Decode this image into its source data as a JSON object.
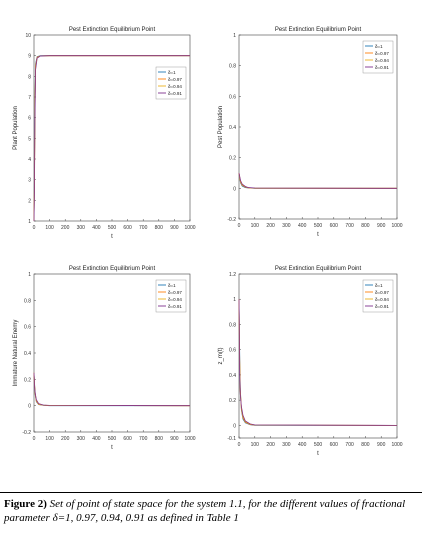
{
  "figure": {
    "caption_lead": "Figure 2)",
    "caption_text": " Set of point of state space for the system 1.1, for the different values of fractional parameter δ=1, 0.97, 0.94, 0.91 as defined in Table 1"
  },
  "colors": {
    "d1": "#1f77b4",
    "d097": "#ff7f0e",
    "d094": "#edb120",
    "d091": "#7e2f8e",
    "axis": "#444444"
  },
  "chart_data": [
    {
      "type": "line",
      "title": "Pest Extinction Equilibrium Point",
      "xlabel": "t",
      "ylabel": "Plant Population",
      "xlim": [
        0,
        1000
      ],
      "ylim": [
        1,
        10
      ],
      "xticks": [
        0,
        100,
        200,
        300,
        400,
        500,
        600,
        700,
        800,
        900,
        1000
      ],
      "yticks": [
        1,
        2,
        3,
        4,
        5,
        6,
        7,
        8,
        9,
        10
      ],
      "legend_position": "top-right",
      "series": [
        {
          "name": "δ=1",
          "color_key": "d1",
          "x": [
            0,
            3,
            6,
            10,
            20,
            40,
            100,
            1000
          ],
          "y": [
            1,
            3.2,
            6.5,
            8.6,
            8.95,
            9.0,
            9.0,
            9.0
          ]
        },
        {
          "name": "δ=0.97",
          "color_key": "d097",
          "x": [
            0,
            3,
            6,
            10,
            20,
            40,
            100,
            1000
          ],
          "y": [
            1,
            3.0,
            6.2,
            8.5,
            8.93,
            8.99,
            9.0,
            9.0
          ]
        },
        {
          "name": "δ=0.94",
          "color_key": "d094",
          "x": [
            0,
            3,
            6,
            10,
            20,
            40,
            100,
            1000
          ],
          "y": [
            1,
            2.8,
            6.0,
            8.4,
            8.9,
            8.99,
            9.0,
            9.0
          ]
        },
        {
          "name": "δ=0.91",
          "color_key": "d091",
          "x": [
            0,
            3,
            6,
            10,
            20,
            40,
            100,
            1000
          ],
          "y": [
            1,
            2.6,
            5.8,
            8.3,
            8.88,
            8.98,
            9.0,
            9.0
          ]
        }
      ]
    },
    {
      "type": "line",
      "title": "Pest Extinction Equilibrium Point",
      "xlabel": "t",
      "ylabel": "Pest Population",
      "xlim": [
        0,
        1000
      ],
      "ylim": [
        -0.2,
        1
      ],
      "xticks": [
        0,
        100,
        200,
        300,
        400,
        500,
        600,
        700,
        800,
        900,
        1000
      ],
      "yticks": [
        -0.2,
        0,
        0.2,
        0.4,
        0.6,
        0.8,
        1
      ],
      "legend_position": "top-right",
      "series": [
        {
          "name": "δ=1",
          "color_key": "d1",
          "x": [
            0,
            5,
            10,
            20,
            40,
            60,
            100,
            1000
          ],
          "y": [
            0.1,
            0.06,
            0.035,
            0.015,
            0.005,
            0.002,
            0.0,
            0.0
          ]
        },
        {
          "name": "δ=0.97",
          "color_key": "d097",
          "x": [
            0,
            5,
            10,
            20,
            40,
            60,
            100,
            1000
          ],
          "y": [
            0.1,
            0.065,
            0.04,
            0.02,
            0.008,
            0.003,
            0.001,
            0.0
          ]
        },
        {
          "name": "δ=0.94",
          "color_key": "d094",
          "x": [
            0,
            5,
            10,
            20,
            40,
            60,
            100,
            1000
          ],
          "y": [
            0.1,
            0.07,
            0.045,
            0.024,
            0.01,
            0.004,
            0.001,
            0.0
          ]
        },
        {
          "name": "δ=0.91",
          "color_key": "d091",
          "x": [
            0,
            5,
            10,
            20,
            40,
            60,
            100,
            1000
          ],
          "y": [
            0.1,
            0.075,
            0.05,
            0.028,
            0.012,
            0.005,
            0.002,
            0.0
          ]
        }
      ]
    },
    {
      "type": "line",
      "title": "Pest Extinction Equilibrium Point",
      "xlabel": "t",
      "ylabel": "Immature Natural Enemy",
      "xlim": [
        0,
        1000
      ],
      "ylim": [
        -0.2,
        1
      ],
      "xticks": [
        0,
        100,
        200,
        300,
        400,
        500,
        600,
        700,
        800,
        900,
        1000
      ],
      "yticks": [
        -0.2,
        0,
        0.2,
        0.4,
        0.6,
        0.8,
        1
      ],
      "legend_position": "top-right",
      "series": [
        {
          "name": "δ=1",
          "color_key": "d1",
          "x": [
            0,
            3,
            8,
            15,
            30,
            60,
            100,
            1000
          ],
          "y": [
            0.25,
            0.18,
            0.08,
            0.03,
            0.008,
            0.002,
            0.0,
            0.0
          ]
        },
        {
          "name": "δ=0.97",
          "color_key": "d097",
          "x": [
            0,
            3,
            8,
            15,
            30,
            60,
            100,
            1000
          ],
          "y": [
            0.25,
            0.17,
            0.085,
            0.035,
            0.01,
            0.003,
            0.001,
            0.0
          ]
        },
        {
          "name": "δ=0.94",
          "color_key": "d094",
          "x": [
            0,
            3,
            8,
            15,
            30,
            60,
            100,
            1000
          ],
          "y": [
            0.25,
            0.16,
            0.09,
            0.04,
            0.012,
            0.004,
            0.001,
            0.0
          ]
        },
        {
          "name": "δ=0.91",
          "color_key": "d091",
          "x": [
            0,
            3,
            8,
            15,
            30,
            60,
            100,
            1000
          ],
          "y": [
            0.25,
            0.15,
            0.095,
            0.045,
            0.015,
            0.005,
            0.002,
            0.0
          ]
        }
      ]
    },
    {
      "type": "line",
      "title": "Pest Extinction Equilibrium Point",
      "xlabel": "t",
      "ylabel": "z_m(t)",
      "xlim": [
        0,
        1000
      ],
      "ylim": [
        -0.1,
        1.2
      ],
      "xticks": [
        0,
        100,
        200,
        300,
        400,
        500,
        600,
        700,
        800,
        900,
        1000
      ],
      "yticks": [
        -0.1,
        0,
        0.2,
        0.4,
        0.6,
        0.8,
        1,
        1.2
      ],
      "legend_position": "top-right",
      "series": [
        {
          "name": "δ=1",
          "color_key": "d1",
          "x": [
            0,
            4,
            8,
            15,
            25,
            40,
            70,
            100,
            1000
          ],
          "y": [
            1.0,
            0.6,
            0.3,
            0.12,
            0.05,
            0.02,
            0.005,
            0.0,
            0.0
          ]
        },
        {
          "name": "δ=0.97",
          "color_key": "d097",
          "x": [
            0,
            4,
            8,
            15,
            25,
            40,
            70,
            100,
            1000
          ],
          "y": [
            1.0,
            0.55,
            0.28,
            0.13,
            0.06,
            0.025,
            0.007,
            0.002,
            0.0
          ]
        },
        {
          "name": "δ=0.94",
          "color_key": "d094",
          "x": [
            0,
            4,
            8,
            15,
            25,
            40,
            70,
            100,
            1000
          ],
          "y": [
            1.0,
            0.5,
            0.27,
            0.14,
            0.07,
            0.03,
            0.009,
            0.003,
            0.0
          ]
        },
        {
          "name": "δ=0.91",
          "color_key": "d091",
          "x": [
            0,
            4,
            8,
            15,
            25,
            40,
            70,
            100,
            1000
          ],
          "y": [
            1.0,
            0.45,
            0.25,
            0.15,
            0.08,
            0.035,
            0.012,
            0.004,
            0.0
          ]
        }
      ]
    }
  ]
}
